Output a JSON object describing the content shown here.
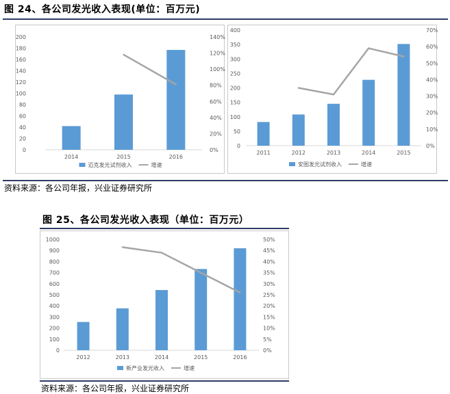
{
  "figure24": {
    "title": "图 24、各公司发光收入表现(单位：百万元)",
    "source": "资料来源：各公司年报，兴业证券研究所"
  },
  "figure25": {
    "title": "图 25、各公司发光收入表现（单位：百万元）",
    "source": "资料来源：各公司年报，兴业证券研究所"
  },
  "chart_data": [
    {
      "type": "bar",
      "title": "",
      "categories": [
        "2014",
        "2015",
        "2016"
      ],
      "series": [
        {
          "name": "迈克发光试剂收入",
          "type": "bar",
          "axis": "left",
          "values": [
            42,
            98,
            177
          ],
          "color": "#5b9bd5"
        },
        {
          "name": "增速",
          "type": "line",
          "axis": "right",
          "values": [
            null,
            1.18,
            0.81
          ],
          "color": "#a5a5a5"
        }
      ],
      "ylim": [
        0,
        200
      ],
      "yticks": [
        "0",
        "20",
        "40",
        "60",
        "80",
        "100",
        "120",
        "140",
        "160",
        "180",
        "200"
      ],
      "y2lim": [
        0,
        1.4
      ],
      "y2ticks": [
        "0%",
        "20%",
        "40%",
        "60%",
        "80%",
        "100%",
        "120%",
        "140%"
      ],
      "legend": "bottom",
      "grid": false
    },
    {
      "type": "bar",
      "title": "",
      "categories": [
        "2011",
        "2012",
        "2013",
        "2014",
        "2015"
      ],
      "series": [
        {
          "name": "安图发光试剂收入",
          "type": "bar",
          "axis": "left",
          "values": [
            82,
            108,
            145,
            228,
            352
          ],
          "color": "#5b9bd5"
        },
        {
          "name": "增速",
          "type": "line",
          "axis": "right",
          "values": [
            null,
            0.35,
            0.31,
            0.59,
            0.54
          ],
          "color": "#a5a5a5"
        }
      ],
      "ylim": [
        0,
        400
      ],
      "yticks": [
        "0",
        "50",
        "100",
        "150",
        "200",
        "250",
        "300",
        "350",
        "400"
      ],
      "y2lim": [
        0,
        0.7
      ],
      "y2ticks": [
        "0%",
        "10%",
        "20%",
        "30%",
        "40%",
        "50%",
        "60%",
        "70%"
      ],
      "legend": "bottom",
      "grid": false
    },
    {
      "type": "bar",
      "title": "",
      "categories": [
        "2012",
        "2013",
        "2014",
        "2015",
        "2016"
      ],
      "series": [
        {
          "name": "新产业发光收入",
          "type": "bar",
          "axis": "left",
          "values": [
            255,
            378,
            543,
            733,
            920
          ],
          "color": "#5b9bd5"
        },
        {
          "name": "增速",
          "type": "line",
          "axis": "right",
          "values": [
            null,
            0.465,
            0.44,
            0.35,
            0.26
          ],
          "color": "#a5a5a5"
        }
      ],
      "ylim": [
        0,
        1000
      ],
      "yticks": [
        "0",
        "100",
        "200",
        "300",
        "400",
        "500",
        "600",
        "700",
        "800",
        "900",
        "1000"
      ],
      "y2lim": [
        0,
        0.5
      ],
      "y2ticks": [
        "0%",
        "5%",
        "10%",
        "15%",
        "20%",
        "25%",
        "30%",
        "35%",
        "40%",
        "45%",
        "50%"
      ],
      "legend": "bottom",
      "grid": false
    }
  ]
}
